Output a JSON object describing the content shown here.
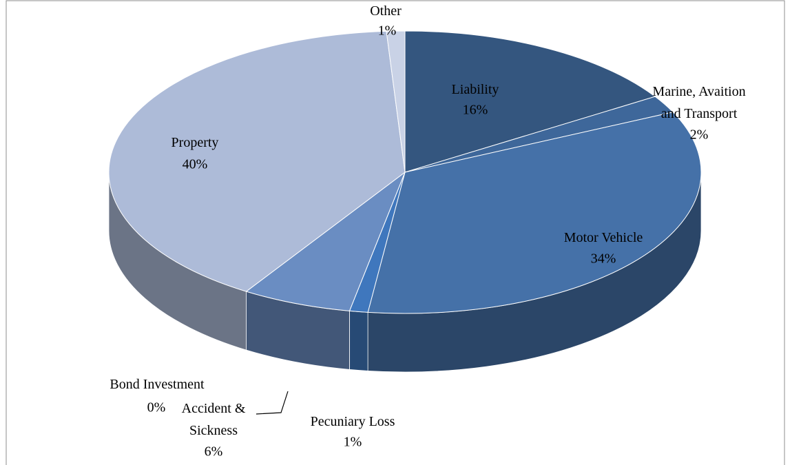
{
  "chart_data": {
    "type": "pie",
    "categories": [
      "Liability",
      "Marine, Avaition and Transport",
      "Motor Vehicle",
      "Pecuniary Loss",
      "Bond Investment",
      "Accident & Sickness",
      "Property",
      "Other"
    ],
    "values": [
      16,
      2,
      34,
      1,
      0,
      6,
      40,
      1
    ],
    "value_labels": [
      "16%",
      "2%",
      "34%",
      "1%",
      "0%",
      "6%",
      "40%",
      "1%"
    ],
    "colors": [
      "#34567f",
      "#3e679a",
      "#4571a8",
      "#3f77bd",
      "#5a80b8",
      "#6a8dc2",
      "#adbbd8",
      "#c9d2e6"
    ]
  }
}
